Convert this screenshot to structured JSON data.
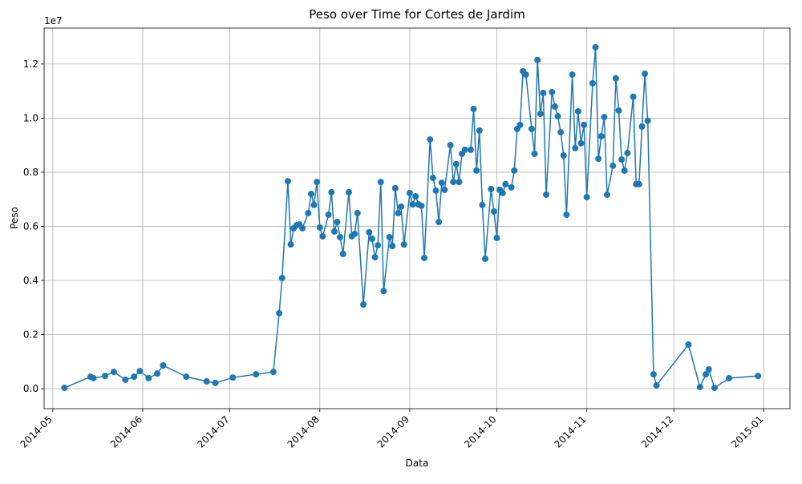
{
  "chart_data": {
    "type": "line",
    "title": "Peso over Time for Cortes de Jardim",
    "x_label": "Data",
    "y_label": "Peso",
    "y_offset_label": "1e7",
    "x": [
      "2014-05-05",
      "2014-05-14",
      "2014-05-15",
      "2014-05-19",
      "2014-05-22",
      "2014-05-26",
      "2014-05-29",
      "2014-05-31",
      "2014-06-03",
      "2014-06-06",
      "2014-06-08",
      "2014-06-16",
      "2014-06-23",
      "2014-06-26",
      "2014-07-02",
      "2014-07-10",
      "2014-07-16",
      "2014-07-18",
      "2014-07-19",
      "2014-07-21",
      "2014-07-22",
      "2014-07-23",
      "2014-07-24",
      "2014-07-25",
      "2014-07-26",
      "2014-07-28",
      "2014-07-29",
      "2014-07-30",
      "2014-07-31",
      "2014-08-01",
      "2014-08-02",
      "2014-08-04",
      "2014-08-05",
      "2014-08-06",
      "2014-08-07",
      "2014-08-08",
      "2014-08-09",
      "2014-08-11",
      "2014-08-12",
      "2014-08-13",
      "2014-08-14",
      "2014-08-16",
      "2014-08-18",
      "2014-08-19",
      "2014-08-20",
      "2014-08-21",
      "2014-08-22",
      "2014-08-23",
      "2014-08-25",
      "2014-08-26",
      "2014-08-27",
      "2014-08-28",
      "2014-08-29",
      "2014-08-30",
      "2014-09-01",
      "2014-09-02",
      "2014-09-03",
      "2014-09-04",
      "2014-09-05",
      "2014-09-06",
      "2014-09-08",
      "2014-09-09",
      "2014-09-10",
      "2014-09-11",
      "2014-09-12",
      "2014-09-13",
      "2014-09-15",
      "2014-09-16",
      "2014-09-17",
      "2014-09-18",
      "2014-09-19",
      "2014-09-20",
      "2014-09-22",
      "2014-09-23",
      "2014-09-24",
      "2014-09-25",
      "2014-09-26",
      "2014-09-27",
      "2014-09-29",
      "2014-09-30",
      "2014-10-01",
      "2014-10-02",
      "2014-10-03",
      "2014-10-04",
      "2014-10-06",
      "2014-10-07",
      "2014-10-08",
      "2014-10-09",
      "2014-10-10",
      "2014-10-11",
      "2014-10-13",
      "2014-10-14",
      "2014-10-15",
      "2014-10-16",
      "2014-10-17",
      "2014-10-18",
      "2014-10-20",
      "2014-10-21",
      "2014-10-22",
      "2014-10-23",
      "2014-10-24",
      "2014-10-25",
      "2014-10-27",
      "2014-10-28",
      "2014-10-29",
      "2014-10-30",
      "2014-10-31",
      "2014-11-01",
      "2014-11-03",
      "2014-11-04",
      "2014-11-05",
      "2014-11-06",
      "2014-11-07",
      "2014-11-08",
      "2014-11-10",
      "2014-11-11",
      "2014-11-12",
      "2014-11-13",
      "2014-11-14",
      "2014-11-15",
      "2014-11-17",
      "2014-11-18",
      "2014-11-19",
      "2014-11-20",
      "2014-11-21",
      "2014-11-22",
      "2014-11-24",
      "2014-11-25",
      "2014-12-06",
      "2014-12-10",
      "2014-12-12",
      "2014-12-13",
      "2014-12-15",
      "2014-12-20",
      "2014-12-30"
    ],
    "series": [
      {
        "name": "Peso",
        "color": "#1f77b4",
        "values": [
          30000,
          440000,
          390000,
          470000,
          620000,
          330000,
          440000,
          650000,
          390000,
          560000,
          860000,
          440000,
          270000,
          210000,
          410000,
          530000,
          620000,
          2790000,
          4090000,
          7670000,
          5330000,
          5930000,
          6040000,
          6070000,
          5930000,
          6490000,
          7200000,
          6790000,
          7640000,
          5960000,
          5630000,
          6430000,
          7260000,
          5810000,
          6160000,
          5600000,
          4980000,
          7260000,
          5630000,
          5720000,
          6490000,
          3110000,
          5780000,
          5540000,
          4860000,
          5300000,
          7640000,
          3610000,
          5600000,
          5270000,
          7410000,
          6490000,
          6730000,
          5330000,
          7230000,
          6810000,
          7110000,
          6810000,
          6760000,
          4830000,
          9210000,
          7790000,
          7320000,
          6160000,
          7610000,
          7350000,
          9000000,
          7640000,
          8300000,
          7640000,
          8680000,
          8830000,
          8830000,
          10340000,
          8060000,
          9540000,
          6790000,
          4800000,
          7380000,
          6550000,
          5570000,
          7350000,
          7230000,
          7560000,
          7440000,
          8060000,
          9600000,
          9750000,
          11730000,
          11610000,
          9600000,
          8680000,
          12150000,
          10160000,
          10930000,
          7170000,
          10960000,
          10430000,
          10070000,
          9480000,
          8620000,
          6430000,
          11610000,
          8890000,
          10250000,
          9070000,
          9750000,
          7080000,
          11290000,
          12620000,
          8500000,
          9330000,
          10040000,
          7170000,
          8240000,
          11470000,
          10280000,
          8470000,
          8060000,
          8710000,
          10790000,
          7560000,
          7560000,
          9690000,
          11640000,
          9900000,
          530000,
          120000,
          1630000,
          60000,
          530000,
          710000,
          30000,
          385000,
          470000
        ]
      }
    ],
    "xlim": [
      "2014-04-28",
      "2015-01-10"
    ],
    "xticks": [
      {
        "value": "2014-05-01",
        "label": "2014-05"
      },
      {
        "value": "2014-06-01",
        "label": "2014-06"
      },
      {
        "value": "2014-07-01",
        "label": "2014-07"
      },
      {
        "value": "2014-08-01",
        "label": "2014-08"
      },
      {
        "value": "2014-09-01",
        "label": "2014-09"
      },
      {
        "value": "2014-10-01",
        "label": "2014-10"
      },
      {
        "value": "2014-11-01",
        "label": "2014-11"
      },
      {
        "value": "2014-12-01",
        "label": "2014-12"
      },
      {
        "value": "2015-01-01",
        "label": "2015-01"
      }
    ],
    "ylim": [
      -740000,
      13330000
    ],
    "yticks": [
      {
        "value": 0,
        "label": "0.0"
      },
      {
        "value": 2000000,
        "label": "0.2"
      },
      {
        "value": 4000000,
        "label": "0.4"
      },
      {
        "value": 6000000,
        "label": "0.6"
      },
      {
        "value": 8000000,
        "label": "0.8"
      },
      {
        "value": 10000000,
        "label": "1.0"
      },
      {
        "value": 12000000,
        "label": "1.2"
      }
    ],
    "grid": true
  }
}
